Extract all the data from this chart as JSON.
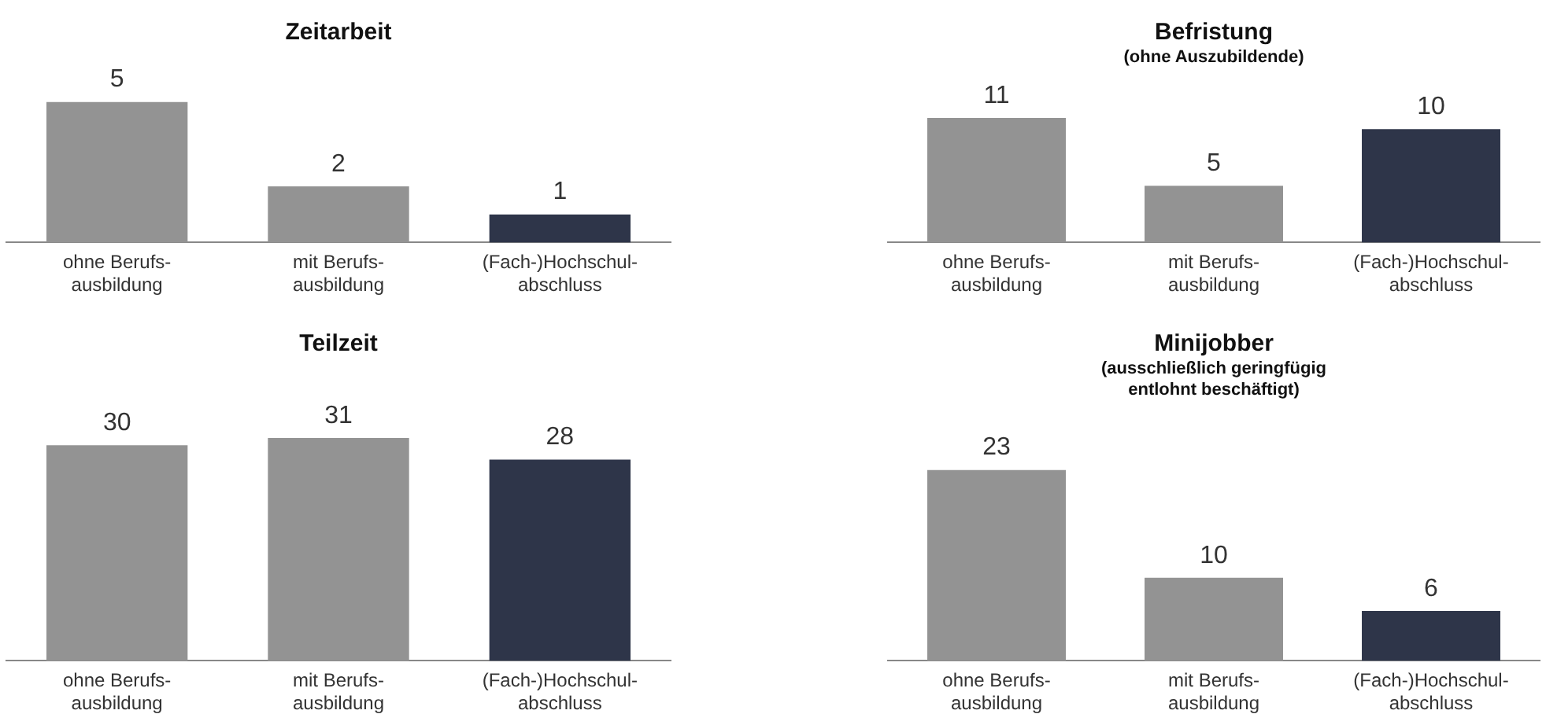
{
  "chart_data": [
    {
      "type": "bar",
      "title": "Zeitarbeit",
      "categories": [
        "ohne Berufs-\nausbildung",
        "mit Berufs-\nausbildung",
        "(Fach-)Hochschul-\nabschluss"
      ],
      "values": [
        5,
        2,
        1
      ],
      "colors": [
        "#939393",
        "#939393",
        "#2e3549"
      ],
      "data_labels": true,
      "legend": false,
      "grid": false
    },
    {
      "type": "bar",
      "title": "Befristung",
      "subtitle": "(ohne Auszubildende)",
      "categories": [
        "ohne Berufs-\nausbildung",
        "mit Berufs-\nausbildung",
        "(Fach-)Hochschul-\nabschluss"
      ],
      "values": [
        11,
        5,
        10
      ],
      "colors": [
        "#939393",
        "#939393",
        "#2e3549"
      ],
      "data_labels": true,
      "legend": false,
      "grid": false
    },
    {
      "type": "bar",
      "title": "Teilzeit",
      "categories": [
        "ohne Berufs-\nausbildung",
        "mit Berufs-\nausbildung",
        "(Fach-)Hochschul-\nabschluss"
      ],
      "values": [
        30,
        31,
        28
      ],
      "colors": [
        "#939393",
        "#939393",
        "#2e3549"
      ],
      "data_labels": true,
      "legend": false,
      "grid": false
    },
    {
      "type": "bar",
      "title": "Minijobber",
      "subtitle": "(ausschließlich geringfügig\nentlohnt beschäftigt)",
      "categories": [
        "ohne Berufs-\nausbildung",
        "mit Berufs-\nausbildung",
        "(Fach-)Hochschul-\nabschluss"
      ],
      "values": [
        23,
        10,
        6
      ],
      "colors": [
        "#939393",
        "#939393",
        "#2e3549"
      ],
      "data_labels": true,
      "legend": false,
      "grid": false
    }
  ]
}
